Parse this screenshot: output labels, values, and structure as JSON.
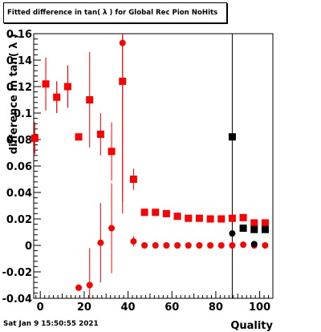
{
  "title": "Fitted difference in tan( λ ) for Global Rec Pion NoHits",
  "timestamp": "Sat Jan  9 15:50:55 2021",
  "colors": {
    "red": "#ff0000",
    "black": "#000000"
  },
  "chart_data": {
    "type": "scatter",
    "xlabel": "Quality",
    "ylabel": "difference in tan( λ )",
    "xlim": [
      -3,
      106
    ],
    "ylim": [
      -0.04,
      0.16
    ],
    "xticks": [
      0,
      20,
      40,
      60,
      80,
      100
    ],
    "yticks": [
      -0.04,
      -0.02,
      0,
      0.02,
      0.04,
      0.06,
      0.08,
      0.1,
      0.12,
      0.14,
      0.16
    ],
    "ytick_labels": [
      "-0.04",
      "-0.02",
      "0",
      "0.02",
      "0.04",
      "0.06",
      "0.08",
      "0.1",
      "0.12",
      "0.14",
      "0.16"
    ],
    "grid": false,
    "series": [
      {
        "marker": "square",
        "color": "#ff0000",
        "points": [
          {
            "x": -2.5,
            "y": 0.081,
            "err": 0.012
          },
          {
            "x": 2.5,
            "y": 0.122,
            "err": 0.02
          },
          {
            "x": 7.5,
            "y": 0.112,
            "err": 0.012
          },
          {
            "x": 12.5,
            "y": 0.12,
            "err": 0.016
          },
          {
            "x": 17.5,
            "y": 0.082,
            "err": 0.0
          },
          {
            "x": 22.5,
            "y": 0.11,
            "err": 0.036
          },
          {
            "x": 27.5,
            "y": 0.084,
            "err": 0.016
          },
          {
            "x": 32.5,
            "y": 0.071,
            "err": 0.022
          },
          {
            "x": 37.5,
            "y": 0.124,
            "err": 0.1
          },
          {
            "x": 42.5,
            "y": 0.05,
            "err": 0.008
          },
          {
            "x": 47.5,
            "y": 0.025,
            "err": 0.0
          },
          {
            "x": 52.5,
            "y": 0.025,
            "err": 0.0
          },
          {
            "x": 57.5,
            "y": 0.024,
            "err": 0.0
          },
          {
            "x": 62.5,
            "y": 0.022,
            "err": 0.0
          },
          {
            "x": 67.5,
            "y": 0.0205,
            "err": 0.0
          },
          {
            "x": 72.5,
            "y": 0.0205,
            "err": 0.0
          },
          {
            "x": 77.5,
            "y": 0.02,
            "err": 0.0
          },
          {
            "x": 82.5,
            "y": 0.02,
            "err": 0.0
          },
          {
            "x": 87.5,
            "y": 0.0205,
            "err": 0.0
          },
          {
            "x": 92.5,
            "y": 0.021,
            "err": 0.0
          },
          {
            "x": 97.5,
            "y": 0.017,
            "err": 0.0
          },
          {
            "x": 102.5,
            "y": 0.017,
            "err": 0.0
          }
        ]
      },
      {
        "marker": "circle",
        "color": "#ff0000",
        "points": [
          {
            "x": -2.5,
            "y": 0.081,
            "err": 0.012
          },
          {
            "x": 2.5,
            "y": 0.122,
            "err": 0.02
          },
          {
            "x": 7.5,
            "y": 0.112,
            "err": 0.012
          },
          {
            "x": 12.5,
            "y": 0.12,
            "err": 0.016
          },
          {
            "x": 17.5,
            "y": -0.032,
            "err": 0.002
          },
          {
            "x": 22.5,
            "y": -0.03,
            "err": 0.028
          },
          {
            "x": 27.5,
            "y": 0.002,
            "err": 0.03
          },
          {
            "x": 32.5,
            "y": 0.013,
            "err": 0.034
          },
          {
            "x": 37.5,
            "y": 0.153,
            "err": 0.12
          },
          {
            "x": 42.5,
            "y": 0.003,
            "err": 0.004
          },
          {
            "x": 47.5,
            "y": 0.0,
            "err": 0.0
          },
          {
            "x": 52.5,
            "y": 0.0,
            "err": 0.0
          },
          {
            "x": 57.5,
            "y": 0.0,
            "err": 0.0
          },
          {
            "x": 62.5,
            "y": 0.0,
            "err": 0.0
          },
          {
            "x": 67.5,
            "y": 0.0,
            "err": 0.0
          },
          {
            "x": 72.5,
            "y": 0.0,
            "err": 0.0
          },
          {
            "x": 77.5,
            "y": 0.0,
            "err": 0.0
          },
          {
            "x": 82.5,
            "y": 0.0,
            "err": 0.0
          },
          {
            "x": 87.5,
            "y": 0.0,
            "err": 0.0
          },
          {
            "x": 92.5,
            "y": 0.0005,
            "err": 0.0
          },
          {
            "x": 97.5,
            "y": 0.0,
            "err": 0.0
          },
          {
            "x": 102.5,
            "y": 0.0,
            "err": 0.0
          }
        ]
      },
      {
        "marker": "square",
        "color": "#000000",
        "points": [
          {
            "x": 87.5,
            "y": 0.082,
            "err": 0.2
          },
          {
            "x": 92.5,
            "y": 0.013,
            "err": 0.0
          },
          {
            "x": 97.5,
            "y": 0.012,
            "err": 0.0
          },
          {
            "x": 102.5,
            "y": 0.012,
            "err": 0.0
          }
        ]
      },
      {
        "marker": "circle",
        "color": "#000000",
        "points": [
          {
            "x": 87.5,
            "y": 0.009,
            "err": 0.0
          },
          {
            "x": 97.5,
            "y": 0.001,
            "err": 0.0
          }
        ]
      }
    ]
  }
}
